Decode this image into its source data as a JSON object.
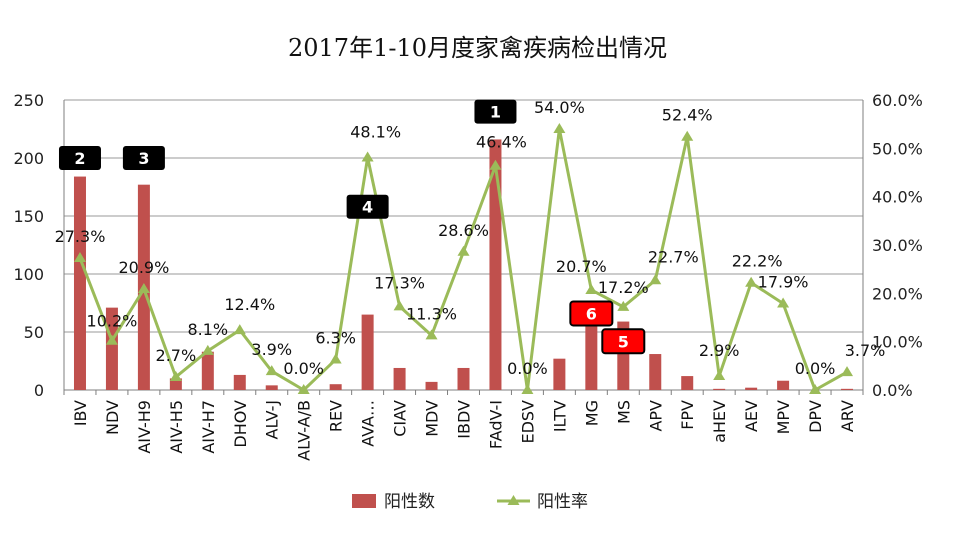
{
  "chart_data": {
    "type": "bar-line-combo",
    "title": "2017年1-10月度家禽疾病检出情况",
    "categories": [
      "IBV",
      "NDV",
      "AIV-H9",
      "AIV-H5",
      "AIV-H7",
      "DHOV",
      "ALV-J",
      "ALV-A/B",
      "REV",
      "AVA…",
      "CIAV",
      "MDV",
      "IBDV",
      "FAdV-Ⅰ",
      "EDSV",
      "ILTV",
      "MG",
      "MS",
      "APV",
      "FPV",
      "aHEV",
      "AEV",
      "MPV",
      "DPV",
      "ARV"
    ],
    "series": [
      {
        "name": "阳性数",
        "type": "bar",
        "axis": "left",
        "color": "#C0504D",
        "values": [
          184,
          71,
          177,
          10,
          33,
          13,
          4,
          0,
          5,
          65,
          19,
          7,
          19,
          216,
          0,
          27,
          55,
          59,
          31,
          12,
          1,
          2,
          8,
          0,
          1
        ]
      },
      {
        "name": "阳性率",
        "type": "line",
        "axis": "right",
        "color": "#9BBB59",
        "values": [
          27.3,
          10.2,
          20.9,
          2.7,
          8.1,
          12.4,
          3.9,
          0.0,
          6.3,
          48.1,
          17.3,
          11.3,
          28.6,
          46.4,
          0.0,
          54.0,
          20.7,
          17.2,
          22.7,
          52.4,
          2.9,
          22.2,
          17.9,
          0.0,
          3.7
        ],
        "labels": [
          "27.3%",
          "10.2%",
          "20.9%",
          "2.7%",
          "8.1%",
          "12.4%",
          "3.9%",
          "0.0%",
          "6.3%",
          "48.1%",
          "17.3%",
          "11.3%",
          "28.6%",
          "46.4%",
          "0.0%",
          "54.0%",
          "20.7%",
          "17.2%",
          "22.7%",
          "52.4%",
          "2.9%",
          "22.2%",
          "17.9%",
          "0.0%",
          "3.7%"
        ]
      }
    ],
    "y_left": {
      "min": 0,
      "max": 250,
      "ticks": [
        0,
        50,
        100,
        150,
        200,
        250
      ]
    },
    "y_right": {
      "min": 0,
      "max": 60,
      "ticks": [
        "0.0%",
        "10.0%",
        "20.0%",
        "30.0%",
        "40.0%",
        "50.0%",
        "60.0%"
      ]
    },
    "grid": true,
    "legend": {
      "position": "bottom",
      "items": [
        "阳性数",
        "阳性率"
      ]
    },
    "annotations": [
      {
        "text": "1",
        "category": "FAdV-Ⅰ",
        "level": 240,
        "color": "#000000"
      },
      {
        "text": "2",
        "category": "IBV",
        "level": 200,
        "color": "#000000"
      },
      {
        "text": "3",
        "category": "AIV-H9",
        "level": 200,
        "color": "#000000"
      },
      {
        "text": "4",
        "category": "AVA…",
        "level": 158,
        "color": "#000000"
      },
      {
        "text": "6",
        "category": "MG",
        "level": 66,
        "color": "#FF0000"
      },
      {
        "text": "5",
        "category": "MS",
        "level": 42,
        "color": "#FF0000"
      }
    ]
  }
}
